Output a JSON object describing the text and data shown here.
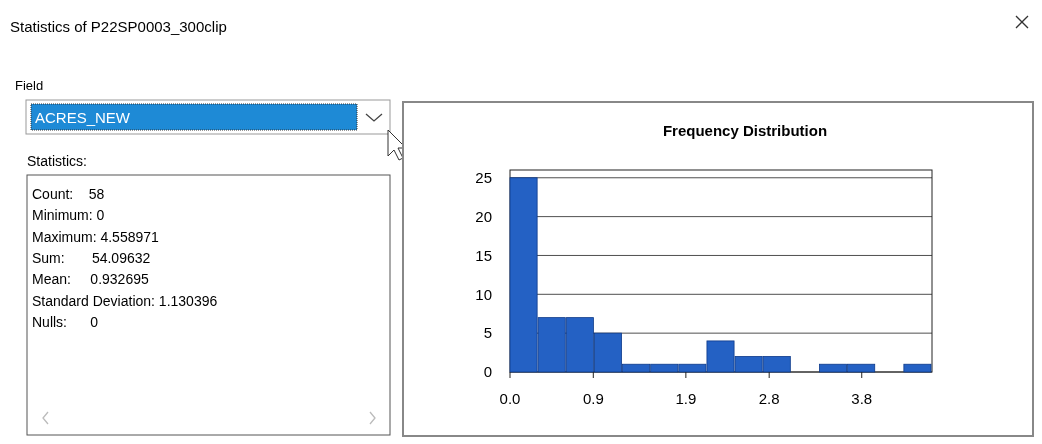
{
  "chart_data": {
    "type": "histogram",
    "title": "Frequency Distribution",
    "bins": [
      0,
      0.3039,
      0.6079,
      0.9118,
      1.2158,
      1.5197,
      1.8236,
      2.1276,
      2.4315,
      2.7354,
      3.0393,
      3.3433,
      3.6472,
      3.9511,
      4.2551,
      4.559
    ],
    "values": [
      25,
      7,
      7,
      5,
      1,
      1,
      1,
      4,
      2,
      2,
      0,
      1,
      1,
      0,
      1
    ],
    "color": "#2461c4",
    "xlim": [
      0,
      4.559
    ],
    "xticks": [
      {
        "value": 0,
        "label": "0.0"
      },
      0.9,
      1.9,
      2.8,
      3.8
    ],
    "ylim": [
      0,
      26
    ],
    "yticks": [
      0,
      5,
      10,
      15,
      20,
      25
    ],
    "grid": "y",
    "annotations": [
      "Statistics of P22SP0003_300clip",
      "Field",
      "ACRES_NEW",
      "Statistics:",
      "Count:    58",
      "Minimum: 0",
      "Maximum: 4.558971",
      "Sum:       54.09632",
      "Mean:     0.932695",
      "Standard Deviation: 1.130396",
      "Nulls:      0"
    ]
  }
}
